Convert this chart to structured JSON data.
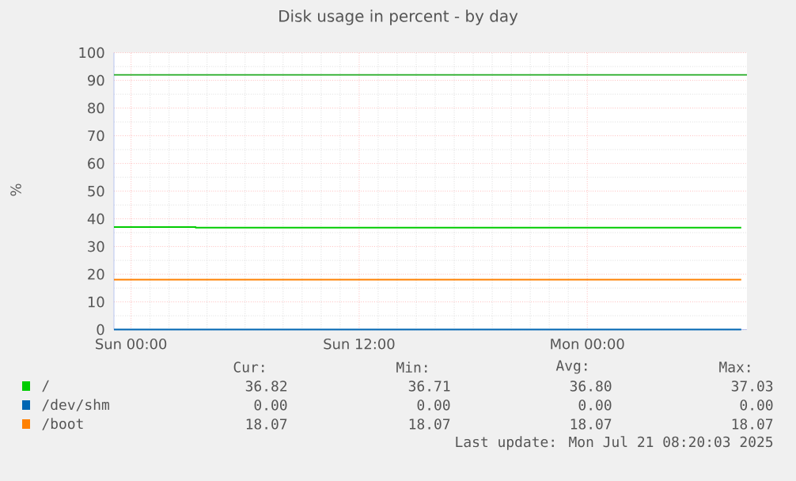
{
  "chart_data": {
    "type": "line",
    "title": "Disk usage in percent - by day",
    "ylabel": "%",
    "xlim": [
      "2025-07-19T23:06",
      "2025-07-21T08:24"
    ],
    "ylim": [
      0,
      100
    ],
    "xticks": [
      {
        "value": "2025-07-20T00:00",
        "label": "Sun 00:00"
      },
      {
        "value": "2025-07-20T12:00",
        "label": "Sun 12:00"
      },
      {
        "value": "2025-07-21T00:00",
        "label": "Mon 00:00"
      }
    ],
    "yticks": [
      0,
      10,
      20,
      30,
      40,
      50,
      60,
      70,
      80,
      90,
      100
    ],
    "grid": true,
    "legend": "bottom left",
    "line_style": "solid",
    "series": [
      {
        "name": "/",
        "color": "#00cc00",
        "x": [
          "2025-07-19T23:06",
          "2025-07-20T03:24",
          "2025-07-20T03:24",
          "2025-07-21T08:06"
        ],
        "values": [
          37,
          37,
          36.8,
          36.8
        ]
      },
      {
        "name": "/dev/shm",
        "color": "#0066b3",
        "x": [
          "2025-07-19T23:06",
          "2025-07-21T08:06"
        ],
        "values": [
          0,
          0
        ]
      },
      {
        "name": "/boot",
        "color": "#ff8000",
        "x": [
          "2025-07-19T23:06",
          "2025-07-21T08:06"
        ],
        "values": [
          18,
          18
        ]
      }
    ],
    "ref_lines": [
      {
        "axis": "y",
        "value": 92,
        "color": "#22aa22"
      }
    ],
    "annotations": [
      "Cur:",
      "Min:",
      "Avg:",
      "Max:",
      "36.82",
      "36.71",
      "36.80",
      "37.03",
      "0.00",
      "0.00",
      "0.00",
      "0.00",
      "18.07",
      "18.07",
      "18.07",
      "18.07",
      "Last update: Mon Jul 21 08:20:03 2025"
    ]
  }
}
